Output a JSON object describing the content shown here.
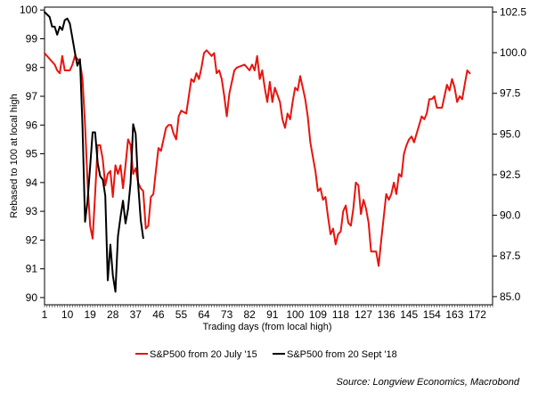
{
  "chart_data": {
    "type": "line",
    "ylabel": "Rebased to 100 at local high",
    "xlabel": "Trading days (from local high)",
    "source": "Source: Longview Economics, Macrobond",
    "x_ticks": [
      1,
      10,
      19,
      28,
      37,
      46,
      55,
      64,
      73,
      82,
      91,
      100,
      109,
      118,
      127,
      136,
      145,
      154,
      163,
      172
    ],
    "y_left": {
      "min": 89.75,
      "max": 100.1,
      "ticks": [
        90,
        91,
        92,
        93,
        94,
        95,
        96,
        97,
        98,
        99,
        100
      ]
    },
    "y_right": {
      "min": 84.5,
      "max": 102.8,
      "ticks": [
        "85.0",
        "87.5",
        "90.0",
        "92.5",
        "95.0",
        "97.5",
        "100.0",
        "102.5"
      ]
    },
    "series": [
      {
        "name": "S&P500 from 20 July '15",
        "axis": "left",
        "color": "#e8140e",
        "points": [
          [
            1,
            98.5
          ],
          [
            3,
            98.3
          ],
          [
            5,
            98.1
          ],
          [
            6,
            97.9
          ],
          [
            7,
            97.8
          ],
          [
            8,
            98.4
          ],
          [
            9,
            97.9
          ],
          [
            11,
            97.9
          ],
          [
            12,
            98.1
          ],
          [
            13,
            98.4
          ],
          [
            14,
            98.3
          ],
          [
            15,
            98.2
          ],
          [
            16,
            97.6
          ],
          [
            17,
            96.0
          ],
          [
            18,
            94.0
          ],
          [
            19,
            92.5
          ],
          [
            20,
            92.05
          ],
          [
            21,
            93.6
          ],
          [
            22,
            95.3
          ],
          [
            23,
            95.3
          ],
          [
            24,
            94.8
          ],
          [
            25,
            93.9
          ],
          [
            26,
            94.3
          ],
          [
            27,
            94.4
          ],
          [
            28,
            93.5
          ],
          [
            29,
            94.6
          ],
          [
            30,
            94.3
          ],
          [
            31,
            94.6
          ],
          [
            32,
            93.8
          ],
          [
            33,
            94.6
          ],
          [
            34,
            95.5
          ],
          [
            35,
            95.3
          ],
          [
            36,
            94.3
          ],
          [
            37,
            94.5
          ],
          [
            38,
            94.0
          ],
          [
            39,
            93.8
          ],
          [
            40,
            93.7
          ],
          [
            41,
            92.4
          ],
          [
            42,
            92.5
          ],
          [
            43,
            93.5
          ],
          [
            44,
            93.6
          ],
          [
            45,
            94.4
          ],
          [
            46,
            95.2
          ],
          [
            47,
            95.1
          ],
          [
            48,
            95.5
          ],
          [
            49,
            95.9
          ],
          [
            50,
            96.0
          ],
          [
            51,
            96.0
          ],
          [
            52,
            95.7
          ],
          [
            53,
            95.5
          ],
          [
            54,
            96.3
          ],
          [
            55,
            96.5
          ],
          [
            57,
            96.4
          ],
          [
            58,
            97.0
          ],
          [
            59,
            97.6
          ],
          [
            60,
            97.5
          ],
          [
            61,
            97.8
          ],
          [
            62,
            97.6
          ],
          [
            63,
            98.0
          ],
          [
            64,
            98.5
          ],
          [
            65,
            98.6
          ],
          [
            67,
            98.4
          ],
          [
            68,
            98.5
          ],
          [
            69,
            97.8
          ],
          [
            70,
            97.9
          ],
          [
            71,
            97.6
          ],
          [
            72,
            97.0
          ],
          [
            73,
            96.3
          ],
          [
            74,
            97.1
          ],
          [
            75,
            97.5
          ],
          [
            76,
            97.9
          ],
          [
            77,
            98.0
          ],
          [
            80,
            98.1
          ],
          [
            82,
            97.9
          ],
          [
            83,
            98.1
          ],
          [
            84,
            97.9
          ],
          [
            85,
            98.4
          ],
          [
            86,
            97.6
          ],
          [
            87,
            97.9
          ],
          [
            88,
            97.3
          ],
          [
            89,
            96.8
          ],
          [
            90,
            97.5
          ],
          [
            91,
            96.8
          ],
          [
            92,
            97.3
          ],
          [
            94,
            96.8
          ],
          [
            95,
            96.2
          ],
          [
            96,
            95.9
          ],
          [
            97,
            96.4
          ],
          [
            98,
            96.2
          ],
          [
            99,
            96.8
          ],
          [
            100,
            97.3
          ],
          [
            101,
            97.2
          ],
          [
            102,
            97.7
          ],
          [
            103,
            97.3
          ],
          [
            104,
            96.9
          ],
          [
            105,
            96.3
          ],
          [
            106,
            95.4
          ],
          [
            107,
            94.9
          ],
          [
            108,
            94.4
          ],
          [
            109,
            93.7
          ],
          [
            110,
            93.8
          ],
          [
            111,
            93.4
          ],
          [
            112,
            93.5
          ],
          [
            113,
            92.8
          ],
          [
            114,
            92.2
          ],
          [
            115,
            92.4
          ],
          [
            116,
            91.85
          ],
          [
            117,
            92.2
          ],
          [
            118,
            92.3
          ],
          [
            119,
            93.0
          ],
          [
            120,
            93.2
          ],
          [
            121,
            92.6
          ],
          [
            122,
            92.5
          ],
          [
            123,
            93.1
          ],
          [
            124,
            94.0
          ],
          [
            125,
            93.9
          ],
          [
            126,
            92.9
          ],
          [
            127,
            93.4
          ],
          [
            128,
            93.1
          ],
          [
            129,
            92.6
          ],
          [
            130,
            91.6
          ],
          [
            131,
            91.6
          ],
          [
            132,
            91.6
          ],
          [
            133,
            91.1
          ],
          [
            134,
            92.0
          ],
          [
            135,
            92.8
          ],
          [
            136,
            93.6
          ],
          [
            137,
            93.4
          ],
          [
            138,
            93.6
          ],
          [
            139,
            94.0
          ],
          [
            140,
            93.6
          ],
          [
            141,
            94.3
          ],
          [
            142,
            94.2
          ],
          [
            143,
            95.0
          ],
          [
            144,
            95.3
          ],
          [
            145,
            95.5
          ],
          [
            146,
            95.6
          ],
          [
            147,
            95.4
          ],
          [
            148,
            95.7
          ],
          [
            149,
            96.0
          ],
          [
            150,
            96.3
          ],
          [
            151,
            96.2
          ],
          [
            152,
            96.4
          ],
          [
            153,
            96.9
          ],
          [
            154,
            96.9
          ],
          [
            155,
            97.0
          ],
          [
            156,
            96.6
          ],
          [
            158,
            96.6
          ],
          [
            159,
            97.0
          ],
          [
            160,
            97.4
          ],
          [
            161,
            97.2
          ],
          [
            162,
            97.6
          ],
          [
            163,
            97.3
          ],
          [
            164,
            96.8
          ],
          [
            165,
            97.0
          ],
          [
            166,
            96.9
          ],
          [
            167,
            97.4
          ],
          [
            168,
            97.9
          ],
          [
            169,
            97.8
          ]
        ]
      },
      {
        "name": "S&P500 from 20 Sept '18",
        "axis": "right",
        "color": "#000000",
        "points": [
          [
            1,
            102.5
          ],
          [
            3,
            102.2
          ],
          [
            4,
            101.6
          ],
          [
            5,
            101.6
          ],
          [
            6,
            101.1
          ],
          [
            7,
            101.6
          ],
          [
            8,
            101.4
          ],
          [
            9,
            102.0
          ],
          [
            10,
            102.1
          ],
          [
            11,
            101.8
          ],
          [
            12,
            100.9
          ],
          [
            13,
            100.0
          ],
          [
            14,
            99.2
          ],
          [
            15,
            99.6
          ],
          [
            16,
            95.5
          ],
          [
            17,
            89.6
          ],
          [
            18,
            90.9
          ],
          [
            19,
            93.0
          ],
          [
            20,
            95.1
          ],
          [
            21,
            95.1
          ],
          [
            22,
            93.2
          ],
          [
            23,
            92.4
          ],
          [
            24,
            92.2
          ],
          [
            25,
            91.2
          ],
          [
            26,
            86.0
          ],
          [
            27,
            88.2
          ],
          [
            28,
            86.3
          ],
          [
            29,
            85.3
          ],
          [
            30,
            88.7
          ],
          [
            31,
            89.9
          ],
          [
            32,
            90.9
          ],
          [
            33,
            89.5
          ],
          [
            34,
            90.4
          ],
          [
            35,
            92.0
          ],
          [
            36,
            95.6
          ],
          [
            37,
            95.0
          ],
          [
            38,
            91.9
          ],
          [
            39,
            89.7
          ],
          [
            40,
            88.6
          ]
        ]
      }
    ],
    "legend": {
      "placement": "bottom"
    }
  }
}
